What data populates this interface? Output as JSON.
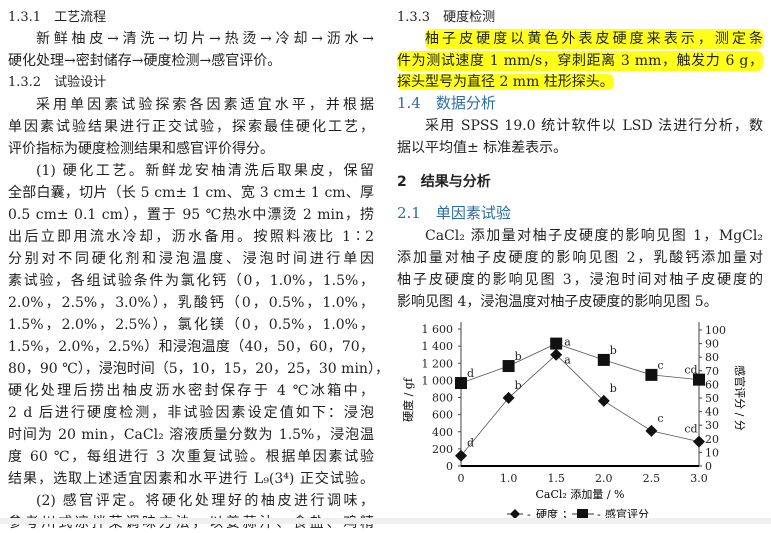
{
  "left_column": {
    "lines": [
      "1.3.1　工艺流程",
      "新鲜柚皮→清洗→切片→热烫→冷却→沥水→",
      "硬化处理→密封储存→硬度检测→感官评价。",
      "1.3.2　试验设计",
      "采用单因素试验探索各因素适宜水平，并根据",
      "单因素试验结果进行正交试验，探索最佳硬化工艺，",
      "评价指标为硬度检测结果和感官评价得分。",
      "(1) 硬化工艺。新鲜龙安柚清洗后取果皮，保留",
      "全部白囊，切片（长 5 cm± 1 cm、宽 3 cm± 1 cm、厚",
      "0.5 cm± 0.1 cm），置于 95 ℃热水中漂烫 2 min，捞",
      "出后立即用流水冷却，沥水备用。按照料液比 1∶2",
      "分别对不同硬化剂和浸泡温度、浸泡时间进行单因",
      "素试验，各组试验条件为氯化钙（0，1.0%，1.5%，",
      "2.0%，2.5%，3.0%），乳酸钙（0，0.5%，1.0%，",
      "1.5%，2.0%，2.5%），氯化镁（0，0.5%，1.0%，",
      "1.5%，2.0%，2.5%）和浸泡温度（40，50，60，70，",
      "80，90 ℃），浸泡时间（5，10，15，20，25，30 min），",
      "硬化处理后捞出柚皮沥水密封保存于 4 ℃冰箱中，",
      "2 d 后进行硬度检测，非试验因素设定值如下：浸泡",
      "时间为 20 min，CaCl₂ 溶液质量分数为 1.5%，浸泡温",
      "度 60 ℃，每组进行 3 次重复试验。根据单因素试验",
      "结果，选取上述适宜因素和水平进行 L₉(3⁴) 正交试验。",
      "(2) 感官评定。将硬化处理好的柚皮进行调味，",
      "参考川式凉拌菜调味方法，以姜蒜汁、食盐、鸡精"
    ]
  },
  "right_column": {
    "lines": [
      "1.3.3　硬度检测",
      "柚子皮硬度以黄色外表皮硬度来表示，测定条",
      "件为测试速度 1 mm/s，穿刺距离 3 mm，触发力 6 g，",
      "探头型号为直径 2 mm 柱形探头。",
      "1.4　数据分析",
      "采用 SPSS 19.0 统计软件以 LSD 法进行分析，数",
      "据以平均值± 标准差表示。",
      "2　结果与分析",
      "2.1　单因素试验",
      "CaCl₂ 添加量对柚子皮硬度的影响见图 1，MgCl₂",
      "添加量对柚子皮硬度的影响见图 2，乳酸钙添加量对",
      "柚子皮硬度的影响见图 3，浸泡时间对柚子皮硬度的",
      "影响见图 4，浸泡温度对柚子皮硬度的影响见图 5。"
    ]
  },
  "colors": {
    "highlight": "#ffff1a",
    "heading_blue": "#2e6da4"
  },
  "chart_data": {
    "type": "line",
    "categories": [
      "0",
      "1.0",
      "1.5",
      "2.0",
      "2.5",
      "3.0"
    ],
    "xlabel": "CaCl₂ 添加量 / %",
    "ylabel": "硬度 / gf",
    "y2label": "感官评分 / 分",
    "ylim": [
      0,
      1600
    ],
    "y2lim": [
      0,
      100
    ],
    "yticks": [
      "0",
      "200",
      "400",
      "600",
      "800",
      "1 000",
      "1 200",
      "1 400",
      "1 600"
    ],
    "y2ticks": [
      "0",
      "10",
      "20",
      "30",
      "40",
      "50",
      "60",
      "70",
      "80",
      "90",
      "100"
    ],
    "grid": false,
    "legend": "bottom",
    "series": [
      {
        "name": "硬度",
        "marker": "diamond",
        "axis": "left",
        "values": [
          120,
          795,
          1300,
          760,
          410,
          285
        ],
        "labels": [
          "d",
          "b",
          "a",
          "b",
          "c",
          "cd"
        ]
      },
      {
        "name": "感官评分",
        "marker": "square",
        "axis": "right",
        "values": [
          61,
          73.5,
          90,
          78,
          67,
          63.5
        ],
        "labels": [
          "d",
          "b",
          "a",
          "b",
          "c",
          "cd"
        ]
      }
    ],
    "legend_text": {
      "sep": "；",
      "dash": "-"
    }
  }
}
